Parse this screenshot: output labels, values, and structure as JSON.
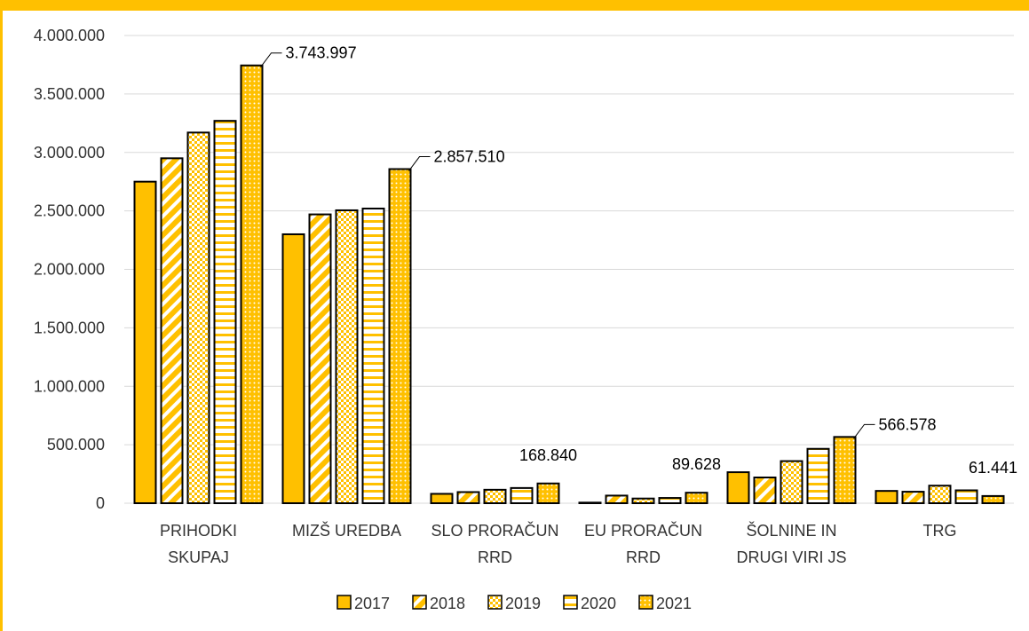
{
  "colors": {
    "accent": "#FFC000",
    "gridline": "#D9D9D9",
    "bar_outline": "#000000",
    "pattern_fill": "#FFC000"
  },
  "chart_data": {
    "type": "bar",
    "categories": [
      [
        "PRIHODKI",
        "SKUPAJ"
      ],
      [
        "MIZŠ UREDBA"
      ],
      [
        "SLO PRORAČUN",
        "RRD"
      ],
      [
        "EU PRORAČUN",
        "RRD"
      ],
      [
        "ŠOLNINE IN",
        "DRUGI VIRI JS"
      ],
      [
        "TRG"
      ]
    ],
    "series": [
      {
        "name": "2017",
        "pattern": "solid",
        "values": [
          2750000,
          2300000,
          80000,
          5000,
          265000,
          105000
        ]
      },
      {
        "name": "2018",
        "pattern": "diagonal",
        "values": [
          2950000,
          2470000,
          95000,
          65000,
          220000,
          98000
        ]
      },
      {
        "name": "2019",
        "pattern": "checker",
        "values": [
          3170000,
          2505000,
          115000,
          40000,
          360000,
          150000
        ]
      },
      {
        "name": "2020",
        "pattern": "horizontal",
        "values": [
          3270000,
          2520000,
          130000,
          45000,
          465000,
          110000
        ]
      },
      {
        "name": "2021",
        "pattern": "dots",
        "values": [
          3743997,
          2857510,
          168840,
          89628,
          566578,
          61441
        ]
      }
    ],
    "data_labels": [
      {
        "series": 4,
        "category": 0,
        "text": "3.743.997"
      },
      {
        "series": 4,
        "category": 1,
        "text": "2.857.510"
      },
      {
        "series": 4,
        "category": 2,
        "text": "168.840"
      },
      {
        "series": 4,
        "category": 3,
        "text": "89.628"
      },
      {
        "series": 4,
        "category": 4,
        "text": "566.578"
      },
      {
        "series": 4,
        "category": 5,
        "text": "61.441"
      }
    ],
    "yticks": [
      "0",
      "500.000",
      "1.000.000",
      "1.500.000",
      "2.000.000",
      "2.500.000",
      "3.000.000",
      "3.500.000",
      "4.000.000"
    ],
    "ylim": [
      0,
      4000000
    ],
    "grid": true,
    "legend": "bottom"
  }
}
